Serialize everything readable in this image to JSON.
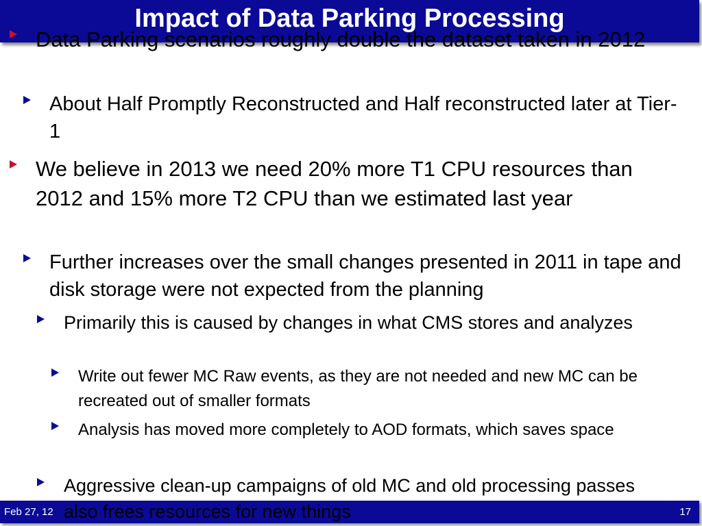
{
  "title": "Impact of Data Parking Processing",
  "footer": {
    "date": "Feb 27, 12",
    "page": "17"
  },
  "bullets": [
    {
      "level": 1,
      "text": "Data Parking scenarios roughly double the dataset taken in 2012"
    },
    {
      "level": 2,
      "text": "About Half Promptly Reconstructed and Half reconstructed later at Tier-1"
    },
    {
      "level": 1,
      "text": "We believe in 2013 we need 20% more T1 CPU resources than 2012 and 15% more T2 CPU than we estimated last year"
    },
    {
      "level": 2,
      "text": "Further increases over the small changes presented in 2011 in tape and disk storage were not expected from the planning"
    },
    {
      "level": 3,
      "text": "Primarily this is caused by changes in what CMS stores and analyzes"
    },
    {
      "level": 4,
      "text": "Write out fewer MC Raw events, as they are not needed and new MC can be recreated out of smaller formats"
    },
    {
      "level": 4,
      "text": "Analysis has moved more completely to AOD formats, which saves space"
    },
    {
      "level": 3,
      "text": "Aggressive clean-up campaigns of old MC and old processing passes also frees resources for new things"
    }
  ],
  "colors": {
    "bar": "#0a0a96",
    "bullet_level1": "#c8102e",
    "bullet_other": "#0a0a96"
  }
}
